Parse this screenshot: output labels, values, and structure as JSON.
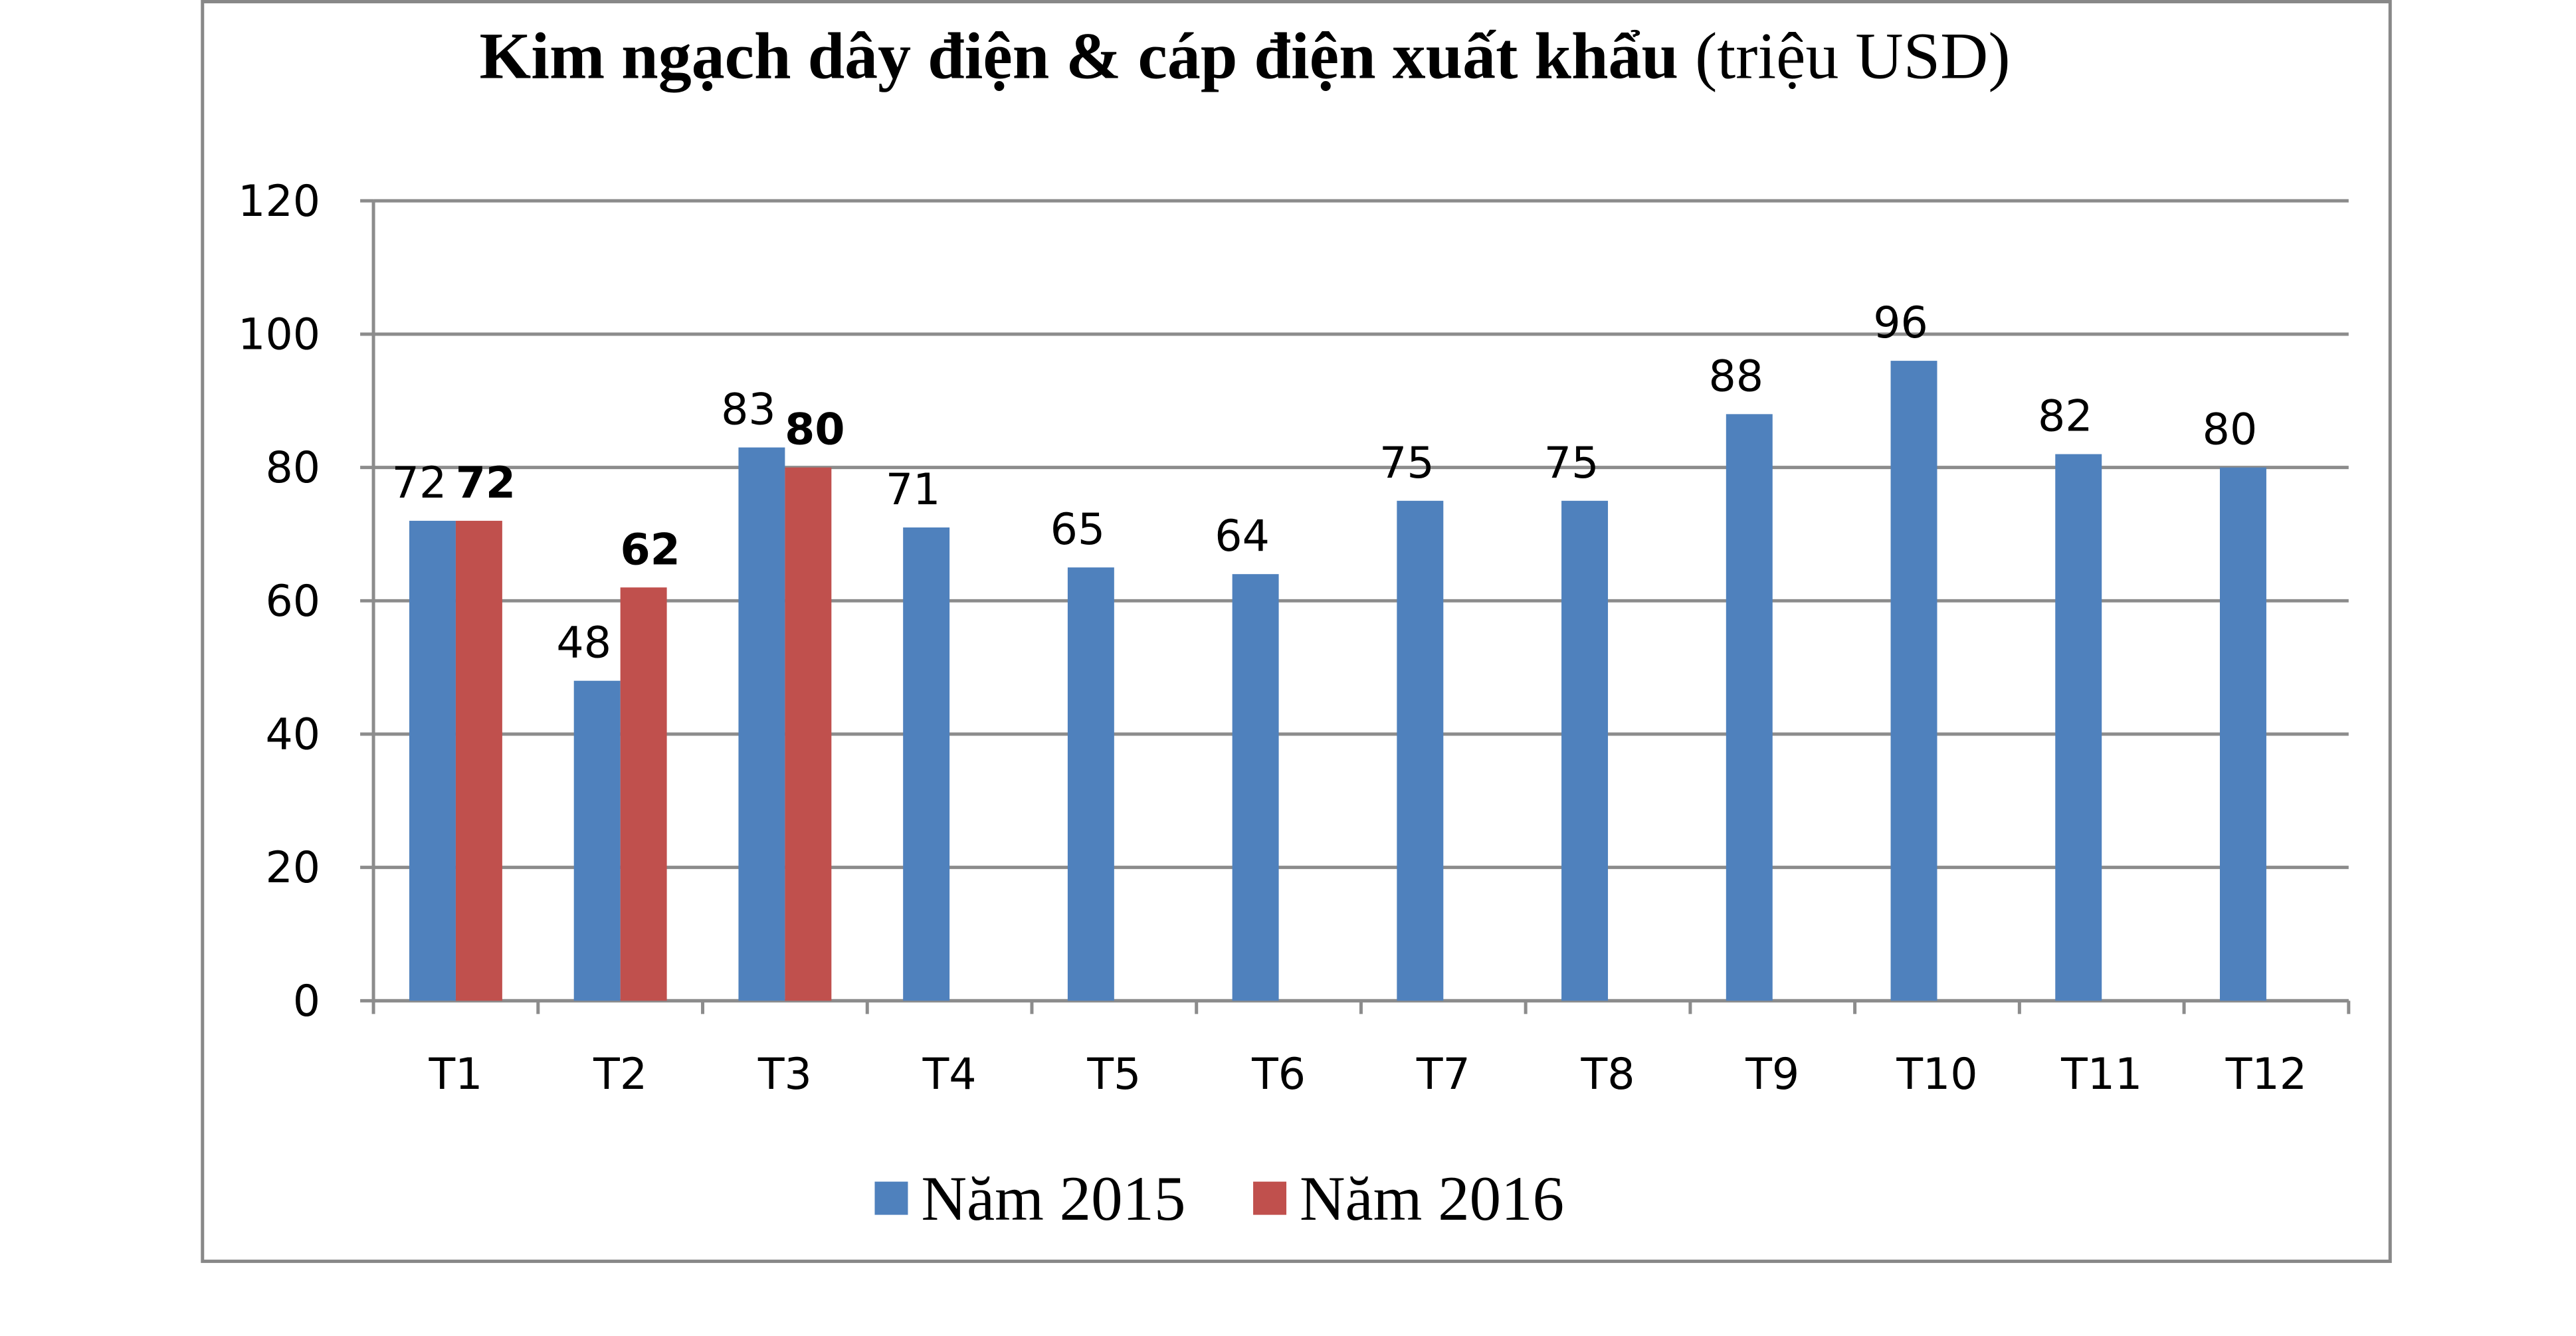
{
  "chart_data": {
    "type": "bar",
    "title": "Kim ngạch dây điện & cáp điện xuất khẩu",
    "title_unit": "(triệu USD)",
    "categories": [
      "T1",
      "T2",
      "T3",
      "T4",
      "T5",
      "T6",
      "T7",
      "T8",
      "T9",
      "T10",
      "T11",
      "T12"
    ],
    "series": [
      {
        "name": "Năm 2015",
        "color": "#4f81bd",
        "values": [
          72,
          48,
          83,
          71,
          65,
          64,
          75,
          75,
          88,
          96,
          82,
          80
        ]
      },
      {
        "name": "Năm 2016",
        "color": "#c0504d",
        "values": [
          72,
          62,
          80,
          null,
          null,
          null,
          null,
          null,
          null,
          null,
          null,
          null
        ]
      }
    ],
    "ylim": [
      0,
      120
    ],
    "yticks": [
      0,
      20,
      40,
      60,
      80,
      100,
      120
    ],
    "grid": true,
    "legend": "bottom"
  }
}
